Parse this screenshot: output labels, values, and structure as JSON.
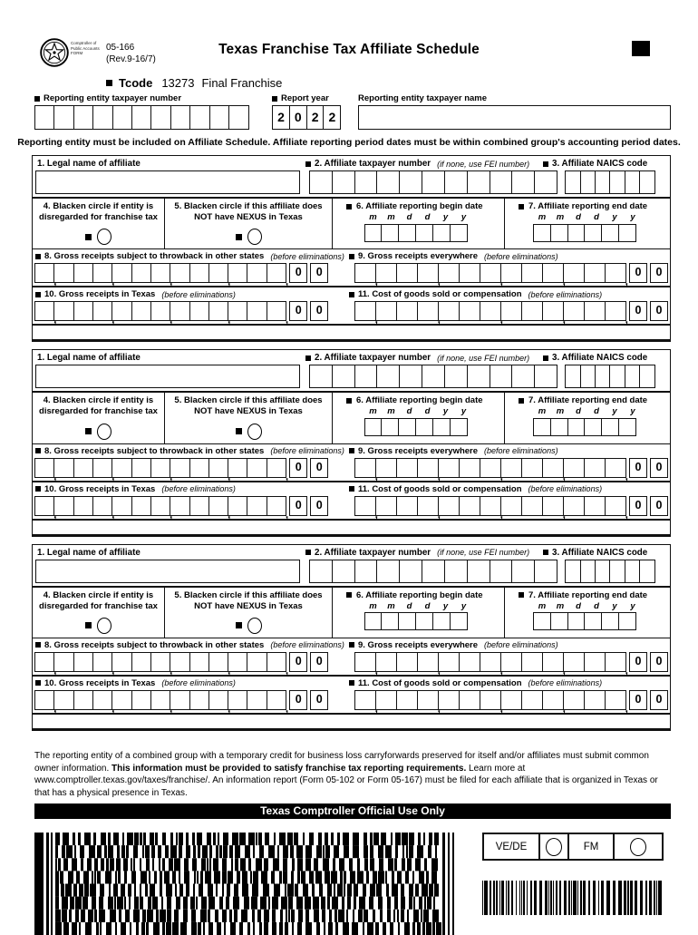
{
  "colors": {
    "ink": "#000000",
    "paper": "#ffffff"
  },
  "header": {
    "agency_small": "Comptroller of Public Accounts FORM",
    "form_number": "05-166",
    "revision": "(Rev.9-16/7)",
    "title": "Texas Franchise Tax Affiliate Schedule",
    "tcode_label": "Tcode",
    "tcode_value": "13273",
    "tcode_type": "Final Franchise"
  },
  "entity": {
    "taxpayer_number_label": "Reporting entity taxpayer number",
    "report_year_label": "Report year",
    "report_year_digits": [
      "2",
      "0",
      "2",
      "2"
    ],
    "taxpayer_name_label": "Reporting entity taxpayer name"
  },
  "instruction": "Reporting entity must be included on Affiliate Schedule. Affiliate reporting period dates must be within combined group's accounting period dates.",
  "affiliate": {
    "f1_label": "1. Legal name of affiliate",
    "f2_label": "2. Affiliate taxpayer number",
    "f2_note": "(if none, use FEI number)",
    "f3_label": "3. Affiliate NAICS  code",
    "f4_line1": "4. Blacken circle if entity is",
    "f4_line2": "disregarded for franchise tax",
    "f5_line1": "5. Blacken circle if this affiliate does",
    "f5_pre": "NOT have ",
    "f5_bold": "NEXUS",
    "f5_post": " in Texas",
    "f6_label": "6. Affiliate reporting begin date",
    "f7_label": "7. Affiliate reporting end date",
    "date_headers": [
      "m",
      "m",
      "d",
      "d",
      "y",
      "y"
    ],
    "f8_label": "8. Gross receipts subject to throwback in other states",
    "f8_note": "(before eliminations)",
    "f9_label": "9. Gross receipts everywhere",
    "f9_note": "(before eliminations)",
    "f10_label": "10. Gross receipts in Texas",
    "f10_note": "(before eliminations)",
    "f11_label": "11. Cost of goods sold or compensation",
    "f11_note": "(before eliminations)"
  },
  "money": {
    "cents": [
      "0",
      "0"
    ]
  },
  "footer": {
    "line1": "The reporting entity of a combined group with a temporary credit for business loss carryforwards preserved for itself and/or affiliates must submit common owner information. ",
    "bold": "This information must be provided to satisfy franchise tax reporting requirements.",
    "line2": " Learn more at www.comptroller.texas.gov/taxes/franchise/. An information report (Form 05-102 or Form 05-167) must be filed for each affiliate that is organized in Texas or that has a physical presence in Texas."
  },
  "official_use": {
    "bar_label": "Texas Comptroller Official Use Only",
    "ve_de_label": "VE/DE",
    "fm_label": "FM"
  },
  "layout": {
    "blocks_count": 3,
    "taxpayer_cells": 11,
    "year_cells": 4,
    "naics_cells": 6,
    "date_cells": 6,
    "money_digit_cells": 13,
    "comma_after": [
      1,
      4,
      7,
      10,
      13
    ]
  }
}
